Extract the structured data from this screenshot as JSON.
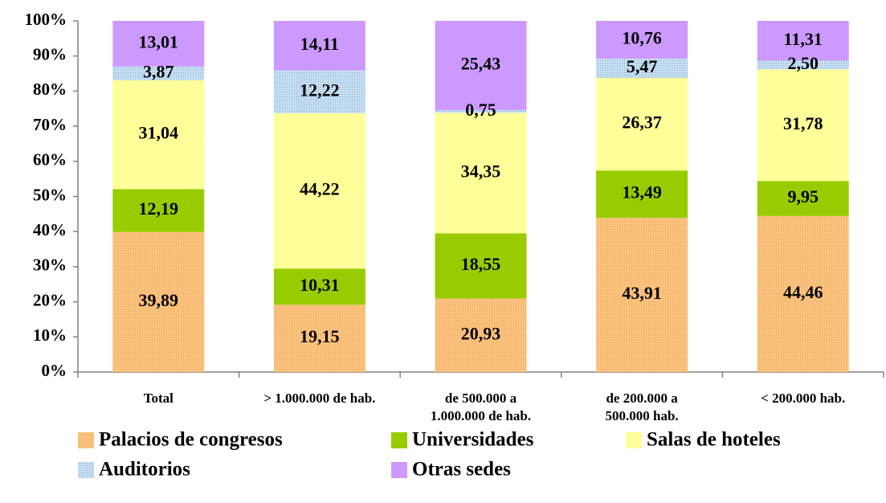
{
  "chart_data": {
    "type": "stacked_bar",
    "categories": [
      "Total",
      "> 1.000.000 de hab.",
      "de 500.000 a\n1.000.000 de hab.",
      "de 200.000 a\n500.000 hab.",
      "< 200.000 hab."
    ],
    "series": [
      {
        "name": "Palacios de congresos",
        "color": "#fbc27e",
        "values": [
          39.89,
          19.15,
          20.93,
          43.91,
          44.46
        ],
        "value_labels": [
          "39,89",
          "19,15",
          "20,93",
          "43,91",
          "44,46"
        ]
      },
      {
        "name": "Universidades",
        "color": "#99cc00",
        "values": [
          12.19,
          10.31,
          18.55,
          13.49,
          9.95
        ],
        "value_labels": [
          "12,19",
          "10,31",
          "18,55",
          "13,49",
          "9,95"
        ]
      },
      {
        "name": "Salas de hoteles",
        "color": "#ffff99",
        "values": [
          31.04,
          44.22,
          34.35,
          26.37,
          31.78
        ],
        "value_labels": [
          "31,04",
          "44,22",
          "34,35",
          "26,37",
          "31,78"
        ]
      },
      {
        "name": "Auditorios",
        "color": "#c6def2",
        "values": [
          3.87,
          12.22,
          0.75,
          5.47,
          2.5
        ],
        "value_labels": [
          "3,87",
          "12,22",
          "0,75",
          "5,47",
          "2,50"
        ]
      },
      {
        "name": "Otras sedes",
        "color": "#cc99ff",
        "values": [
          13.01,
          14.11,
          25.43,
          10.76,
          11.31
        ],
        "value_labels": [
          "13,01",
          "14,11",
          "25,43",
          "10,76",
          "11,31"
        ]
      }
    ],
    "ylim": [
      0,
      100
    ],
    "yticks": [
      {
        "value": 0,
        "label": "0%"
      },
      {
        "value": 10,
        "label": "10%"
      },
      {
        "value": 20,
        "label": "20%"
      },
      {
        "value": 30,
        "label": "30%"
      },
      {
        "value": 40,
        "label": "40%"
      },
      {
        "value": 50,
        "label": "50%"
      },
      {
        "value": 60,
        "label": "60%"
      },
      {
        "value": 70,
        "label": "70%"
      },
      {
        "value": 80,
        "label": "80%"
      },
      {
        "value": 90,
        "label": "90%"
      },
      {
        "value": 100,
        "label": "100%"
      }
    ],
    "grid": false,
    "legend": "bottom"
  }
}
